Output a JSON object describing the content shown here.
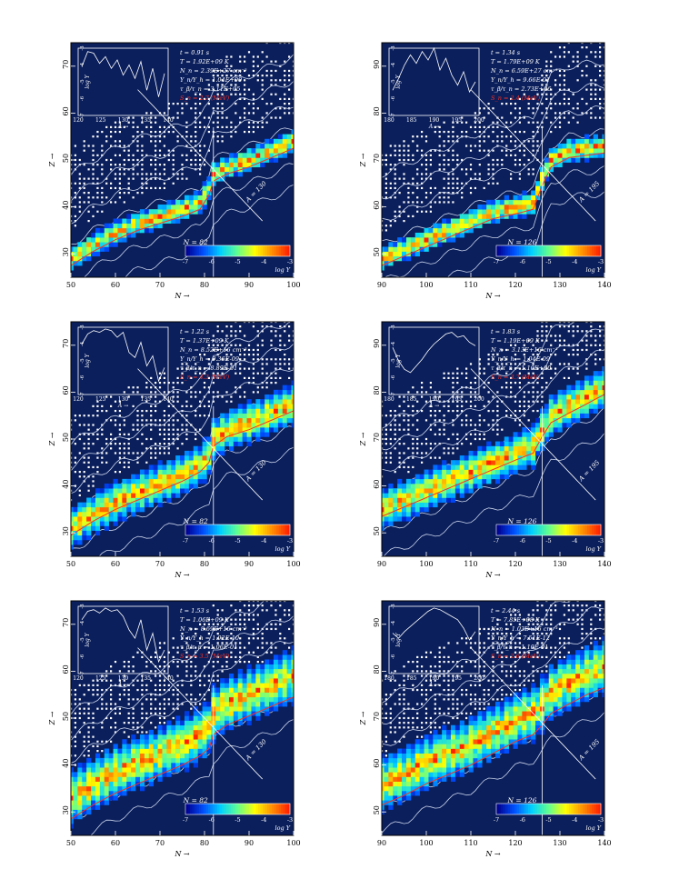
{
  "figure": {
    "colors": {
      "background": "#ffffff",
      "plot_bg": "#0b1f5c",
      "contour": "#c8d2ea",
      "red_line": "#ff3020",
      "text_dark": "#000000",
      "text_light": "#ffffff",
      "text_red": "#ff3020"
    },
    "colormap": [
      "#00008f",
      "#0050ff",
      "#00d0ff",
      "#60ff90",
      "#ffff00",
      "#ff9000",
      "#ff2000"
    ]
  },
  "chart_data": [
    {
      "type": "heatmap",
      "xlabel": "N →",
      "ylabel": "Z →",
      "xlim": [
        50,
        100
      ],
      "ylim": [
        25,
        75
      ],
      "xticks": [
        "50",
        "60",
        "70",
        "80",
        "90",
        "100"
      ],
      "yticks": [
        "30",
        "40",
        "50",
        "60",
        "70"
      ],
      "shell_label": "N = 82",
      "a_label": "A = 130",
      "inset": {
        "xlabel": "A →",
        "ylabel": "log Y",
        "xlim": [
          118,
          140
        ],
        "xticks": [
          "120",
          "125",
          "130",
          "135",
          "140"
        ],
        "yticks": [
          "-7",
          "-6",
          "-5",
          "-4",
          "-3"
        ],
        "values": [
          -4.1,
          -3.2,
          -3.3,
          -3.9,
          -3.5,
          -4.2,
          -3.7,
          -4.6,
          -4.0,
          -4.8,
          -3.8,
          -5.5,
          -4.2,
          -5.9,
          -4.5
        ]
      },
      "annotations": [
        "t = 0.91 s",
        "T = 1.92E+09 K",
        "N_n = 2.39E+27 cm⁻³",
        "Y_n/Y_h = 1.04E+00",
        "τ_β/τ_n = 3.11E+05"
      ],
      "sn_label": "S_n = 2.7 (MeV)",
      "colorbar": {
        "ticks": [
          "-7",
          "-6",
          "-5",
          "-4",
          "-3"
        ],
        "label": "log Y"
      },
      "path": {
        "x": [
          50,
          55,
          60,
          65,
          70,
          75,
          79,
          81,
          82,
          85,
          90,
          95,
          100
        ],
        "z": [
          29,
          32,
          34.5,
          36.5,
          38,
          39.5,
          41,
          44,
          47,
          48.5,
          50,
          52,
          54
        ]
      },
      "abundance_width": 1.5
    },
    {
      "type": "heatmap",
      "xlabel": "N →",
      "ylabel": "Z →",
      "xlim": [
        90,
        140
      ],
      "ylim": [
        45,
        95
      ],
      "xticks": [
        "90",
        "100",
        "110",
        "120",
        "130",
        "140"
      ],
      "yticks": [
        "50",
        "60",
        "70",
        "80",
        "90"
      ],
      "shell_label": "N = 126",
      "a_label": "A = 195",
      "inset": {
        "xlabel": "A →",
        "ylabel": "log Y",
        "xlim": [
          178,
          200
        ],
        "xticks": [
          "180",
          "185",
          "190",
          "195",
          "200"
        ],
        "yticks": [
          "-7",
          "-6",
          "-5",
          "-4",
          "-3"
        ],
        "values": [
          -5.5,
          -4.8,
          -4.0,
          -3.4,
          -3.9,
          -3.2,
          -3.7,
          -3.0,
          -4.3,
          -3.6,
          -4.6,
          -5.2,
          -4.4,
          -5.6,
          -5.0
        ]
      },
      "annotations": [
        "t = 1.34 s",
        "T = 1.79E+09 K",
        "N_n = 6.59E+27 cm⁻³",
        "Y_n/Y_h = 9.66E-01",
        "τ_β/τ_n = 2.73E+06"
      ],
      "sn_label": "S_n = 2.4 (MeV)",
      "colorbar": {
        "ticks": [
          "-7",
          "-6",
          "-5",
          "-4",
          "-3"
        ],
        "label": "log Y"
      },
      "path": {
        "x": [
          90,
          95,
          100,
          105,
          110,
          115,
          120,
          124,
          126,
          128,
          132,
          136,
          140
        ],
        "z": [
          49,
          51,
          53,
          55,
          57,
          59,
          60,
          61,
          66,
          70,
          72,
          72.5,
          73
        ]
      },
      "abundance_width": 1.5
    },
    {
      "type": "heatmap",
      "xlabel": "N →",
      "ylabel": "Z →",
      "xlim": [
        50,
        100
      ],
      "ylim": [
        25,
        75
      ],
      "xticks": [
        "50",
        "60",
        "70",
        "80",
        "90",
        "100"
      ],
      "yticks": [
        "30",
        "40",
        "50",
        "60",
        "70"
      ],
      "shell_label": "N = 82",
      "a_label": "A = 130",
      "inset": {
        "xlabel": "A →",
        "ylabel": "log Y",
        "xlim": [
          118,
          140
        ],
        "xticks": [
          "120",
          "125",
          "130",
          "135",
          "140"
        ],
        "yticks": [
          "-7",
          "-6",
          "-5",
          "-4",
          "-3"
        ],
        "values": [
          -4.0,
          -3.4,
          -3.2,
          -3.3,
          -3.1,
          -3.2,
          -3.6,
          -3.3,
          -4.5,
          -4.8,
          -3.9,
          -5.3,
          -4.7,
          -6.2,
          -5.4
        ]
      },
      "annotations": [
        "t = 1.22 s",
        "T = 1.37E+09 K",
        "N_n = 8.52E+16 cm⁻³",
        "Y_n/Y_h = 9.36E-09",
        "τ_β/τ_n = 8.89E-01"
      ],
      "sn_label": "S_n = 4.3 (MeV)",
      "colorbar": {
        "ticks": [
          "-7",
          "-6",
          "-5",
          "-4",
          "-3"
        ],
        "label": "log Y"
      },
      "path": {
        "x": [
          50,
          55,
          60,
          65,
          70,
          75,
          79,
          81,
          82,
          85,
          90,
          95,
          100
        ],
        "z": [
          31,
          34,
          36.5,
          38.5,
          40.5,
          42.5,
          44.5,
          46.5,
          50,
          52,
          53.5,
          55.5,
          57.5
        ]
      },
      "abundance_width": 3.5
    },
    {
      "type": "heatmap",
      "xlabel": "N →",
      "ylabel": "Z →",
      "xlim": [
        90,
        140
      ],
      "ylim": [
        45,
        95
      ],
      "xticks": [
        "90",
        "100",
        "110",
        "120",
        "130",
        "140"
      ],
      "yticks": [
        "50",
        "60",
        "70",
        "80",
        "90"
      ],
      "shell_label": "N = 126",
      "a_label": "A = 195",
      "inset": {
        "xlabel": "A →",
        "ylabel": "log Y",
        "xlim": [
          178,
          200
        ],
        "xticks": [
          "180",
          "185",
          "190",
          "195",
          "200"
        ],
        "yticks": [
          "-7",
          "-6",
          "-5",
          "-4",
          "-3"
        ],
        "values": [
          -4.2,
          -5.0,
          -5.5,
          -5.7,
          -5.3,
          -4.9,
          -4.4,
          -4.0,
          -3.7,
          -3.4,
          -3.3,
          -3.6,
          -3.5,
          -3.9,
          -4.1
        ]
      },
      "annotations": [
        "t = 1.83 s",
        "T = 1.19E+09 K",
        "N_n = 3.13E+16 cm⁻³",
        "Y_n/Y_h = 1.04E-09",
        "τ_β/τ_n = 1.10E+00"
      ],
      "sn_label": "S_n = 3.7 (MeV)",
      "colorbar": {
        "ticks": [
          "-7",
          "-6",
          "-5",
          "-4",
          "-3"
        ],
        "label": "log Y"
      },
      "path": {
        "x": [
          90,
          95,
          100,
          105,
          110,
          115,
          120,
          124,
          126,
          128,
          132,
          136,
          140
        ],
        "z": [
          55,
          57,
          59,
          61,
          63,
          65,
          67,
          68.5,
          72,
          75,
          77,
          79,
          81
        ]
      },
      "abundance_width": 3.5
    },
    {
      "type": "heatmap",
      "xlabel": "N →",
      "ylabel": "Z →",
      "xlim": [
        50,
        100
      ],
      "ylim": [
        25,
        75
      ],
      "xticks": [
        "50",
        "60",
        "70",
        "80",
        "90",
        "100"
      ],
      "yticks": [
        "30",
        "40",
        "50",
        "60",
        "70"
      ],
      "shell_label": "N = 82",
      "a_label": "A = 130",
      "inset": {
        "xlabel": "A →",
        "ylabel": "log Y",
        "xlim": [
          118,
          140
        ],
        "xticks": [
          "120",
          "125",
          "130",
          "135",
          "140"
        ],
        "yticks": [
          "-7",
          "-6",
          "-5",
          "-4",
          "-3"
        ],
        "values": [
          -3.8,
          -3.3,
          -3.2,
          -3.4,
          -3.1,
          -3.3,
          -3.2,
          -3.6,
          -4.4,
          -4.9,
          -3.8,
          -5.6,
          -4.6,
          -6.3,
          -5.6
        ]
      },
      "annotations": [
        "t = 1.53 s",
        "T = 1.06E+09 K",
        "N_n = 8.69E+16 cm⁻³",
        "Y_n/Y_h = 1.92E-10",
        "τ_β/τ_n = 1.06E-01"
      ],
      "sn_label": "S_n = 3.5 (MeV)",
      "colorbar": {
        "ticks": [
          "-7",
          "-6",
          "-5",
          "-4",
          "-3"
        ],
        "label": "log Y"
      },
      "path": {
        "x": [
          50,
          55,
          60,
          65,
          70,
          75,
          79,
          81,
          82,
          85,
          90,
          95,
          100
        ],
        "z": [
          33,
          36,
          38.5,
          40.5,
          42.5,
          44.5,
          46.5,
          48,
          51,
          53,
          55,
          57,
          59
        ]
      },
      "abundance_width": 5.0
    },
    {
      "type": "heatmap",
      "xlabel": "N →",
      "ylabel": "Z →",
      "xlim": [
        90,
        140
      ],
      "ylim": [
        45,
        95
      ],
      "xticks": [
        "90",
        "100",
        "110",
        "120",
        "130",
        "140"
      ],
      "yticks": [
        "50",
        "60",
        "70",
        "80",
        "90"
      ],
      "shell_label": "N = 126",
      "a_label": "A = 195",
      "inset": {
        "xlabel": "A →",
        "ylabel": "log Y",
        "xlim": [
          178,
          200
        ],
        "xticks": [
          "180",
          "185",
          "190",
          "195",
          "200"
        ],
        "yticks": [
          "-7",
          "-6",
          "-5",
          "-4",
          "-3"
        ],
        "values": [
          -4.6,
          -4.9,
          -4.5,
          -4.2,
          -3.9,
          -3.6,
          -3.3,
          -3.1,
          -3.2,
          -3.4,
          -3.6,
          -3.8,
          -4.3,
          -5.0,
          -4.5
        ]
      },
      "annotations": [
        "t = 2.44 s",
        "T = 7.85E+08 K",
        "N_n = 1.03E+16 cm⁻³",
        "Y_n/Y_h = 7.51E-12",
        "τ_β/τ_n = 1.10E-01"
      ],
      "sn_label": "S_n = 2.6 (MeV)",
      "colorbar": {
        "ticks": [
          "-7",
          "-6",
          "-5",
          "-4",
          "-3"
        ],
        "label": "log Y"
      },
      "path": {
        "x": [
          90,
          95,
          100,
          105,
          110,
          115,
          120,
          124,
          126,
          128,
          132,
          136,
          140
        ],
        "z": [
          56,
          58,
          60.5,
          62.5,
          64.5,
          67,
          69.5,
          71,
          73,
          75.5,
          77.5,
          79.5,
          81
        ]
      },
      "abundance_width": 5.0
    }
  ]
}
